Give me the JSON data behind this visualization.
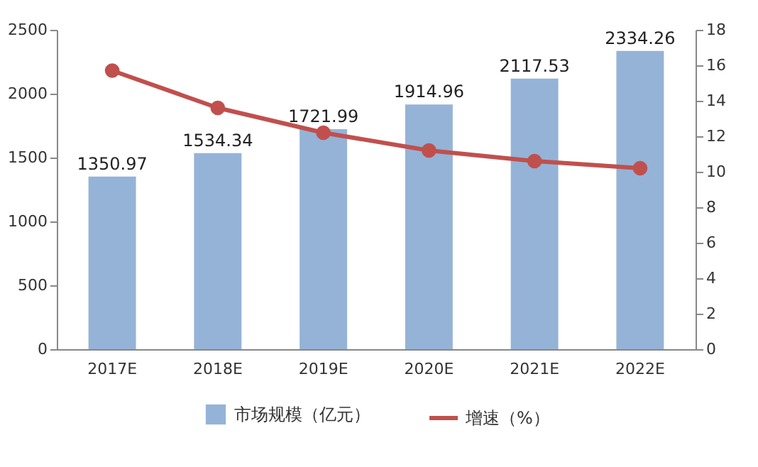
{
  "chart_data": {
    "type": "bar",
    "categories": [
      "2017E",
      "2018E",
      "2019E",
      "2020E",
      "2021E",
      "2022E"
    ],
    "series": [
      {
        "name": "市场规模（亿元）",
        "color": "#95b3d7",
        "values": [
          1350.97,
          1534.34,
          1721.99,
          1914.96,
          2117.53,
          2334.26
        ],
        "value_labels": [
          "1350.97",
          "1534.34",
          "1721.99",
          "1914.96",
          "2117.53",
          "2334.26"
        ]
      },
      {
        "name": "增速（%）",
        "type": "line",
        "axis": "y2",
        "color": "#c0504d",
        "values": [
          15.7,
          13.6,
          12.2,
          11.2,
          10.6,
          10.2
        ]
      }
    ],
    "ylim": [
      0,
      2500
    ],
    "yticks": [
      0,
      500,
      1000,
      1500,
      2000,
      2500
    ],
    "y2lim": [
      0,
      18
    ],
    "y2ticks": [
      0,
      2,
      4,
      6,
      8,
      10,
      12,
      14,
      16,
      18
    ],
    "marker": "circle",
    "line_style": "solid",
    "grid": false,
    "legend": "bottom"
  }
}
